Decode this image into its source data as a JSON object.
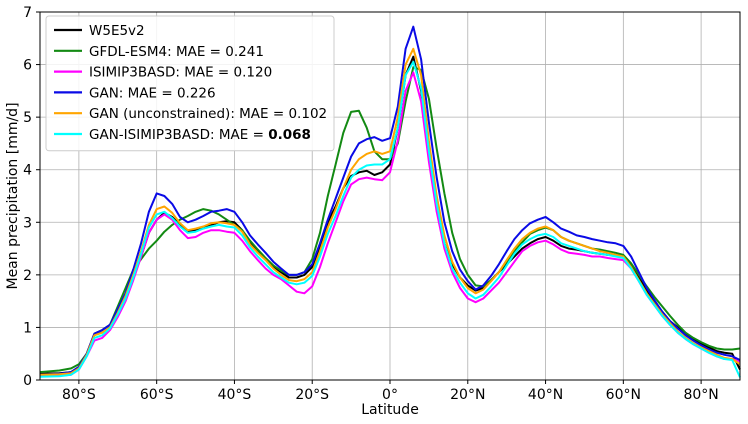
{
  "chart_data": {
    "type": "line",
    "xlabel": "Latitude",
    "ylabel": "Mean precipitation [mm/d]",
    "xlim": [
      -90,
      90
    ],
    "ylim": [
      0,
      7
    ],
    "grid": true,
    "legend_position": "top-left",
    "x_ticks": [
      {
        "value": -80,
        "label": "80°S"
      },
      {
        "value": -60,
        "label": "60°S"
      },
      {
        "value": -40,
        "label": "40°S"
      },
      {
        "value": -20,
        "label": "20°S"
      },
      {
        "value": 0,
        "label": "0°"
      },
      {
        "value": 20,
        "label": "20°N"
      },
      {
        "value": 40,
        "label": "40°N"
      },
      {
        "value": 60,
        "label": "60°N"
      },
      {
        "value": 80,
        "label": "80°N"
      }
    ],
    "y_ticks": [
      0,
      1,
      2,
      3,
      4,
      5,
      6,
      7
    ],
    "x": [
      -90,
      -85,
      -82,
      -80,
      -78,
      -76,
      -74,
      -72,
      -70,
      -68,
      -66,
      -64,
      -62,
      -60,
      -58,
      -56,
      -54,
      -52,
      -50,
      -48,
      -46,
      -44,
      -42,
      -40,
      -38,
      -36,
      -34,
      -32,
      -30,
      -28,
      -26,
      -24,
      -22,
      -20,
      -18,
      -16,
      -14,
      -12,
      -10,
      -8,
      -6,
      -4,
      -2,
      0,
      2,
      4,
      6,
      8,
      10,
      12,
      14,
      16,
      18,
      20,
      22,
      24,
      26,
      28,
      30,
      32,
      34,
      36,
      38,
      40,
      42,
      44,
      46,
      48,
      50,
      52,
      54,
      56,
      58,
      60,
      62,
      64,
      66,
      68,
      70,
      72,
      74,
      76,
      78,
      80,
      82,
      84,
      86,
      88,
      90
    ],
    "series": [
      {
        "name": "W5E5v2",
        "mae": "",
        "color": "#000000",
        "values": [
          0.12,
          0.13,
          0.15,
          0.25,
          0.5,
          0.88,
          0.95,
          1.05,
          1.3,
          1.55,
          1.95,
          2.35,
          2.8,
          3.05,
          3.18,
          3.1,
          2.95,
          2.82,
          2.85,
          2.9,
          2.95,
          3.0,
          3.02,
          3.0,
          2.85,
          2.6,
          2.45,
          2.3,
          2.15,
          2.05,
          1.95,
          1.95,
          2.0,
          2.15,
          2.55,
          3.0,
          3.3,
          3.65,
          3.88,
          3.95,
          3.98,
          3.9,
          3.95,
          4.1,
          4.8,
          5.8,
          6.15,
          5.5,
          4.3,
          3.3,
          2.6,
          2.2,
          1.95,
          1.8,
          1.7,
          1.75,
          1.9,
          2.05,
          2.2,
          2.35,
          2.5,
          2.6,
          2.68,
          2.72,
          2.65,
          2.55,
          2.5,
          2.48,
          2.45,
          2.42,
          2.4,
          2.38,
          2.38,
          2.35,
          2.2,
          1.95,
          1.7,
          1.5,
          1.3,
          1.12,
          1.0,
          0.88,
          0.78,
          0.7,
          0.62,
          0.55,
          0.52,
          0.5,
          0.2
        ]
      },
      {
        "name": "GFDL-ESM4",
        "mae": "0.241",
        "color": "#138a13",
        "values": [
          0.15,
          0.18,
          0.22,
          0.3,
          0.5,
          0.85,
          0.95,
          1.05,
          1.4,
          1.75,
          2.1,
          2.3,
          2.5,
          2.65,
          2.82,
          2.95,
          3.05,
          3.12,
          3.2,
          3.25,
          3.22,
          3.15,
          3.05,
          2.95,
          2.85,
          2.65,
          2.48,
          2.32,
          2.18,
          2.08,
          2.0,
          2.0,
          2.05,
          2.3,
          2.8,
          3.5,
          4.1,
          4.7,
          5.1,
          5.12,
          4.8,
          4.35,
          4.2,
          4.2,
          4.5,
          5.3,
          5.95,
          5.9,
          5.35,
          4.4,
          3.55,
          2.8,
          2.3,
          2.0,
          1.8,
          1.78,
          1.9,
          2.05,
          2.25,
          2.45,
          2.62,
          2.78,
          2.85,
          2.9,
          2.85,
          2.72,
          2.65,
          2.6,
          2.55,
          2.5,
          2.48,
          2.45,
          2.42,
          2.38,
          2.22,
          2.0,
          1.78,
          1.58,
          1.4,
          1.22,
          1.05,
          0.9,
          0.8,
          0.72,
          0.65,
          0.6,
          0.58,
          0.58,
          0.6
        ]
      },
      {
        "name": "ISIMIP3BASD",
        "mae": "0.120",
        "color": "#ff00ff",
        "values": [
          0.08,
          0.08,
          0.1,
          0.2,
          0.45,
          0.75,
          0.8,
          0.95,
          1.2,
          1.5,
          1.9,
          2.35,
          2.8,
          3.05,
          3.15,
          3.05,
          2.85,
          2.7,
          2.72,
          2.8,
          2.85,
          2.85,
          2.82,
          2.8,
          2.65,
          2.45,
          2.28,
          2.12,
          2.0,
          1.92,
          1.8,
          1.68,
          1.65,
          1.78,
          2.15,
          2.6,
          3.0,
          3.4,
          3.72,
          3.82,
          3.85,
          3.82,
          3.8,
          3.95,
          4.55,
          5.5,
          5.85,
          5.3,
          4.15,
          3.2,
          2.5,
          2.05,
          1.75,
          1.55,
          1.48,
          1.55,
          1.7,
          1.85,
          2.05,
          2.25,
          2.45,
          2.55,
          2.62,
          2.65,
          2.58,
          2.48,
          2.42,
          2.4,
          2.38,
          2.35,
          2.35,
          2.32,
          2.3,
          2.28,
          2.12,
          1.88,
          1.62,
          1.42,
          1.22,
          1.05,
          0.9,
          0.78,
          0.68,
          0.6,
          0.52,
          0.45,
          0.4,
          0.4,
          0.35
        ]
      },
      {
        "name": "GAN",
        "mae": "0.226",
        "color": "#0a0ae6",
        "values": [
          0.1,
          0.12,
          0.15,
          0.25,
          0.5,
          0.88,
          0.95,
          1.05,
          1.35,
          1.65,
          2.1,
          2.6,
          3.2,
          3.55,
          3.5,
          3.35,
          3.1,
          3.0,
          3.05,
          3.12,
          3.2,
          3.22,
          3.25,
          3.2,
          3.0,
          2.75,
          2.58,
          2.42,
          2.25,
          2.12,
          2.0,
          2.0,
          2.05,
          2.2,
          2.6,
          3.05,
          3.45,
          3.85,
          4.25,
          4.5,
          4.58,
          4.62,
          4.55,
          4.6,
          5.2,
          6.3,
          6.72,
          6.1,
          4.9,
          3.85,
          3.0,
          2.45,
          2.1,
          1.88,
          1.72,
          1.8,
          1.98,
          2.2,
          2.45,
          2.68,
          2.85,
          2.98,
          3.05,
          3.1,
          3.0,
          2.88,
          2.82,
          2.75,
          2.72,
          2.68,
          2.65,
          2.62,
          2.6,
          2.55,
          2.35,
          2.05,
          1.75,
          1.52,
          1.3,
          1.12,
          0.98,
          0.85,
          0.75,
          0.66,
          0.58,
          0.52,
          0.48,
          0.45,
          0.38
        ]
      },
      {
        "name": "GAN (unconstrained)",
        "mae": "0.102",
        "color": "#ffa500",
        "values": [
          0.1,
          0.11,
          0.13,
          0.22,
          0.48,
          0.85,
          0.9,
          1.0,
          1.28,
          1.6,
          2.0,
          2.45,
          2.95,
          3.25,
          3.3,
          3.18,
          2.98,
          2.85,
          2.88,
          2.92,
          2.98,
          3.0,
          2.98,
          2.95,
          2.82,
          2.58,
          2.42,
          2.28,
          2.12,
          2.0,
          1.9,
          1.88,
          1.92,
          2.05,
          2.45,
          2.9,
          3.25,
          3.65,
          4.0,
          4.2,
          4.3,
          4.35,
          4.3,
          4.35,
          5.0,
          6.0,
          6.3,
          5.8,
          4.55,
          3.5,
          2.75,
          2.25,
          1.95,
          1.75,
          1.65,
          1.72,
          1.88,
          2.05,
          2.28,
          2.5,
          2.68,
          2.8,
          2.88,
          2.92,
          2.85,
          2.72,
          2.65,
          2.6,
          2.55,
          2.5,
          2.45,
          2.42,
          2.38,
          2.35,
          2.15,
          1.9,
          1.65,
          1.45,
          1.25,
          1.08,
          0.92,
          0.8,
          0.7,
          0.62,
          0.55,
          0.48,
          0.42,
          0.4,
          0.3
        ]
      },
      {
        "name": "GAN-ISIMIP3BASD",
        "mae": "0.068",
        "color": "#00ffff",
        "values": [
          0.06,
          0.07,
          0.1,
          0.2,
          0.45,
          0.8,
          0.85,
          0.98,
          1.25,
          1.55,
          1.95,
          2.4,
          2.9,
          3.15,
          3.2,
          3.08,
          2.92,
          2.8,
          2.82,
          2.88,
          2.92,
          2.95,
          2.92,
          2.9,
          2.75,
          2.52,
          2.35,
          2.2,
          2.05,
          1.95,
          1.85,
          1.82,
          1.85,
          1.98,
          2.35,
          2.78,
          3.12,
          3.5,
          3.85,
          4.0,
          4.08,
          4.1,
          4.1,
          4.2,
          4.8,
          5.8,
          6.05,
          5.55,
          4.35,
          3.35,
          2.6,
          2.12,
          1.85,
          1.65,
          1.55,
          1.62,
          1.78,
          1.95,
          2.18,
          2.4,
          2.58,
          2.68,
          2.75,
          2.78,
          2.72,
          2.6,
          2.55,
          2.5,
          2.45,
          2.42,
          2.4,
          2.38,
          2.35,
          2.32,
          2.12,
          1.88,
          1.62,
          1.42,
          1.22,
          1.05,
          0.9,
          0.78,
          0.68,
          0.6,
          0.52,
          0.45,
          0.4,
          0.38,
          0.05
        ]
      }
    ]
  }
}
